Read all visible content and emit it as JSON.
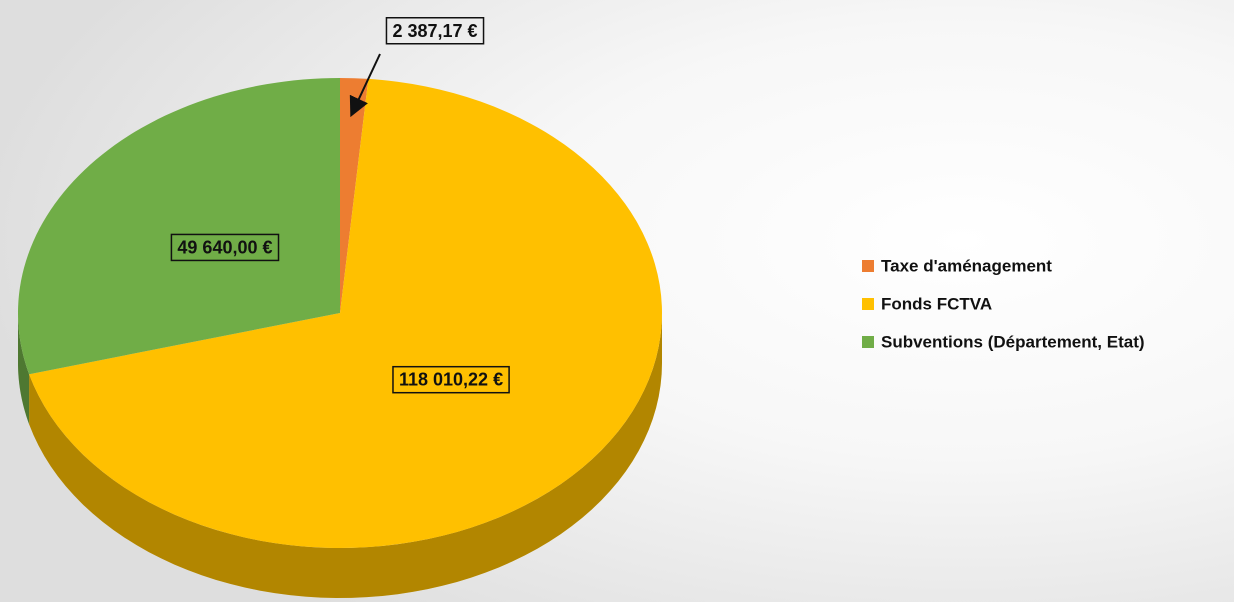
{
  "chart_data": {
    "type": "pie",
    "categories": [
      "Taxe d'aménagement",
      "Fonds FCTVA",
      "Subventions (Département, Etat)"
    ],
    "values": [
      2387.17,
      118010.22,
      49640.0
    ],
    "value_labels": [
      "2 387,17 €",
      "118 010,22 €",
      "49 640,00 €"
    ],
    "colors": [
      "#ed7d31",
      "#ffc000",
      "#70ad47"
    ],
    "legend": "right"
  }
}
